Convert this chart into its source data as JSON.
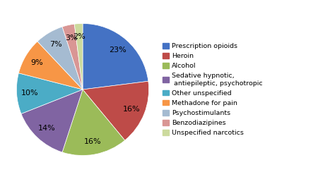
{
  "legend_labels": [
    "Prescription opioids",
    "Heroin",
    "Alcohol",
    "Sedative hypnotic,\n antiepileptic, psychotropic",
    "Other unspecified",
    "Methadone for pain",
    "Psychostimulants",
    "Benzodiazipines",
    "Unspecified narcotics"
  ],
  "values": [
    23,
    16,
    16,
    14,
    10,
    9,
    7,
    3,
    2
  ],
  "colors": [
    "#4472C4",
    "#BE4B48",
    "#9BBB59",
    "#8064A2",
    "#4BACC6",
    "#F79646",
    "#A5BBD1",
    "#D99694",
    "#CCDA9D"
  ],
  "background_color": "#FFFFFF",
  "startangle": 90,
  "pct_distance": 0.8,
  "font_size": 8.0
}
